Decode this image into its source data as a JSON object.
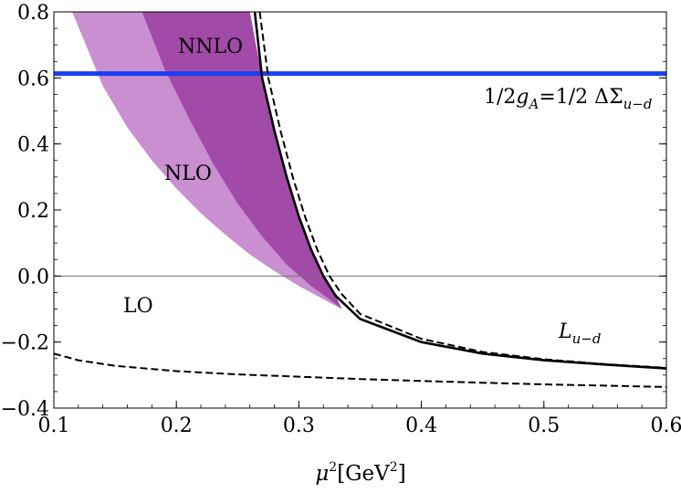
{
  "chart_data": {
    "type": "line",
    "xlabel": {
      "mu": "μ",
      "exp": "2",
      "unit": "[GeV",
      "unit_exp": "2",
      "close": "]"
    },
    "xlim": [
      0.1,
      0.6
    ],
    "ylim": [
      -0.4,
      0.8
    ],
    "grid": false,
    "x_ticks": [
      0.1,
      0.2,
      0.3,
      0.4,
      0.5,
      0.6
    ],
    "x_tick_labels": [
      "0.1",
      "0.2",
      "0.3",
      "0.4",
      "0.5",
      "0.6"
    ],
    "y_ticks": [
      -0.4,
      -0.2,
      0.0,
      0.2,
      0.4,
      0.6,
      0.8
    ],
    "y_tick_labels": [
      "−0.4",
      "−0.2",
      "0.0",
      "0.2",
      "0.4",
      "0.6",
      "0.8"
    ],
    "annotations": {
      "nnlo": "NNLO",
      "nlo": "NLO",
      "lo": "LO",
      "l_main": "L",
      "l_sub": "u−d",
      "ga_prefix": "1/2",
      "ga_g": "g",
      "ga_sub": "A",
      "ga_eq": "=1/2 ΔΣ",
      "ga_sub2": "u−d"
    },
    "series": [
      {
        "kind": "hline",
        "value": 0.613,
        "color": "#1a3ff0"
      },
      {
        "kind": "band",
        "color": "#c98fd0",
        "lower": [
          [
            0.115,
            0.8
          ],
          [
            0.14,
            0.575
          ],
          [
            0.16,
            0.45
          ],
          [
            0.18,
            0.35
          ],
          [
            0.2,
            0.265
          ],
          [
            0.22,
            0.19
          ],
          [
            0.24,
            0.125
          ],
          [
            0.26,
            0.065
          ],
          [
            0.28,
            0.015
          ],
          [
            0.3,
            -0.03
          ],
          [
            0.32,
            -0.07
          ],
          [
            0.335,
            -0.1
          ]
        ],
        "upper": [
          [
            0.26,
            0.8
          ],
          [
            0.27,
            0.6
          ],
          [
            0.28,
            0.44
          ],
          [
            0.29,
            0.3
          ],
          [
            0.3,
            0.18
          ],
          [
            0.31,
            0.08
          ],
          [
            0.32,
            0.0
          ],
          [
            0.33,
            -0.06
          ],
          [
            0.335,
            -0.1
          ]
        ]
      },
      {
        "kind": "band",
        "color": "#a24aa7",
        "lower": [
          [
            0.172,
            0.8
          ],
          [
            0.19,
            0.63
          ],
          [
            0.21,
            0.48
          ],
          [
            0.23,
            0.34
          ],
          [
            0.25,
            0.22
          ],
          [
            0.27,
            0.12
          ],
          [
            0.29,
            0.035
          ],
          [
            0.31,
            -0.03
          ],
          [
            0.325,
            -0.07
          ],
          [
            0.335,
            -0.1
          ]
        ],
        "upper": [
          [
            0.26,
            0.8
          ],
          [
            0.27,
            0.6
          ],
          [
            0.28,
            0.44
          ],
          [
            0.29,
            0.3
          ],
          [
            0.3,
            0.18
          ],
          [
            0.31,
            0.08
          ],
          [
            0.32,
            0.0
          ],
          [
            0.33,
            -0.06
          ],
          [
            0.335,
            -0.1
          ]
        ]
      },
      {
        "kind": "line",
        "name": "L",
        "color": "#000000",
        "dash": false,
        "points": [
          [
            0.264,
            0.8
          ],
          [
            0.27,
            0.6
          ],
          [
            0.28,
            0.44
          ],
          [
            0.29,
            0.3
          ],
          [
            0.3,
            0.18
          ],
          [
            0.31,
            0.08
          ],
          [
            0.32,
            0.0
          ],
          [
            0.33,
            -0.06
          ],
          [
            0.35,
            -0.13
          ],
          [
            0.4,
            -0.2
          ],
          [
            0.45,
            -0.235
          ],
          [
            0.5,
            -0.255
          ],
          [
            0.55,
            -0.268
          ],
          [
            0.6,
            -0.28
          ]
        ]
      },
      {
        "kind": "line",
        "color": "#000000",
        "dash": true,
        "points": [
          [
            0.268,
            0.8
          ],
          [
            0.275,
            0.6
          ],
          [
            0.285,
            0.44
          ],
          [
            0.295,
            0.3
          ],
          [
            0.305,
            0.18
          ],
          [
            0.315,
            0.08
          ],
          [
            0.325,
            0.0
          ],
          [
            0.335,
            -0.055
          ],
          [
            0.35,
            -0.115
          ],
          [
            0.4,
            -0.19
          ],
          [
            0.45,
            -0.23
          ],
          [
            0.5,
            -0.252
          ],
          [
            0.55,
            -0.267
          ],
          [
            0.6,
            -0.278
          ]
        ]
      },
      {
        "kind": "line",
        "color": "#000000",
        "dash": true,
        "points": [
          [
            0.1,
            -0.235
          ],
          [
            0.12,
            -0.255
          ],
          [
            0.15,
            -0.272
          ],
          [
            0.2,
            -0.288
          ],
          [
            0.25,
            -0.298
          ],
          [
            0.3,
            -0.305
          ],
          [
            0.35,
            -0.312
          ],
          [
            0.4,
            -0.318
          ],
          [
            0.45,
            -0.323
          ],
          [
            0.5,
            -0.328
          ],
          [
            0.55,
            -0.332
          ],
          [
            0.6,
            -0.336
          ]
        ]
      }
    ]
  }
}
